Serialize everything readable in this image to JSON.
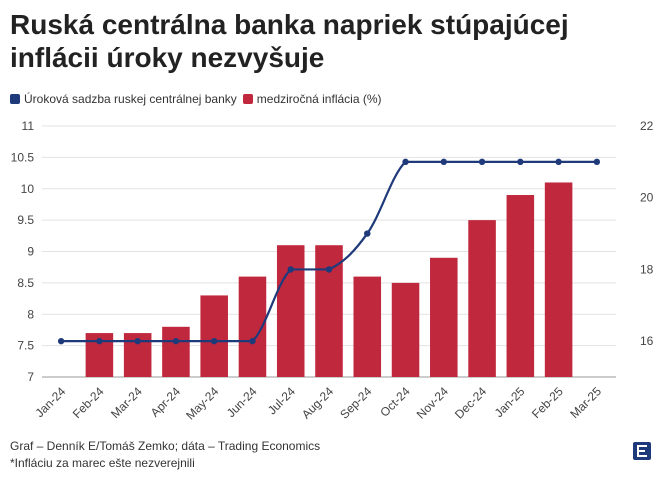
{
  "title": "Ruská centrálna banka napriek stúpajúcej inflácii úroky nezvyšuje",
  "legend": [
    {
      "label": "Úroková sadzba ruskej centrálnej banky",
      "color": "#1f3a7a"
    },
    {
      "label": "medziročná inflácia (%)",
      "color": "#c0283e"
    }
  ],
  "footer": {
    "source": "Graf – Denník E/Tomáš Zemko; dáta – Trading Economics",
    "note": "*Infláciu za marec ešte nezverejnili"
  },
  "logo": {
    "icon": "denník-e-logo-icon",
    "color": "#1f3a7a"
  },
  "chart_data": {
    "type": "bar",
    "categories": [
      "Jan-24",
      "Feb-24",
      "Mar-24",
      "Apr-24",
      "May-24",
      "Jun-24",
      "Jul-24",
      "Aug-24",
      "Sep-24",
      "Oct-24",
      "Nov-24",
      "Dec-24",
      "Jan-25",
      "Feb-25",
      "Mar-25"
    ],
    "series": [
      {
        "name": "medziročná inflácia (%)",
        "type": "bar",
        "axis": "left",
        "color": "#c0283e",
        "values": [
          null,
          7.7,
          7.7,
          7.8,
          8.3,
          8.6,
          9.1,
          9.1,
          8.6,
          8.5,
          8.9,
          9.5,
          9.9,
          10.1,
          null
        ]
      },
      {
        "name": "Úroková sadzba ruskej centrálnej banky",
        "type": "line",
        "axis": "right",
        "color": "#1f3a7a",
        "values": [
          16,
          16,
          16,
          16,
          16,
          16,
          18,
          18,
          19,
          21,
          21,
          21,
          21,
          21,
          21
        ]
      }
    ],
    "y_left": {
      "min": 7,
      "max": 11,
      "ticks": [
        7,
        7.5,
        8,
        8.5,
        9,
        9.5,
        10,
        10.5,
        11
      ],
      "tick_labels": [
        "7",
        "7.5",
        "8",
        "8.5",
        "9",
        "9.5",
        "10",
        "10.5",
        "11"
      ]
    },
    "y_right": {
      "min": 15,
      "max": 22,
      "ticks": [
        16,
        18,
        20,
        22
      ],
      "tick_labels": [
        "16",
        "18",
        "20",
        "22"
      ]
    },
    "grid": true,
    "legend_position": "top-left"
  }
}
